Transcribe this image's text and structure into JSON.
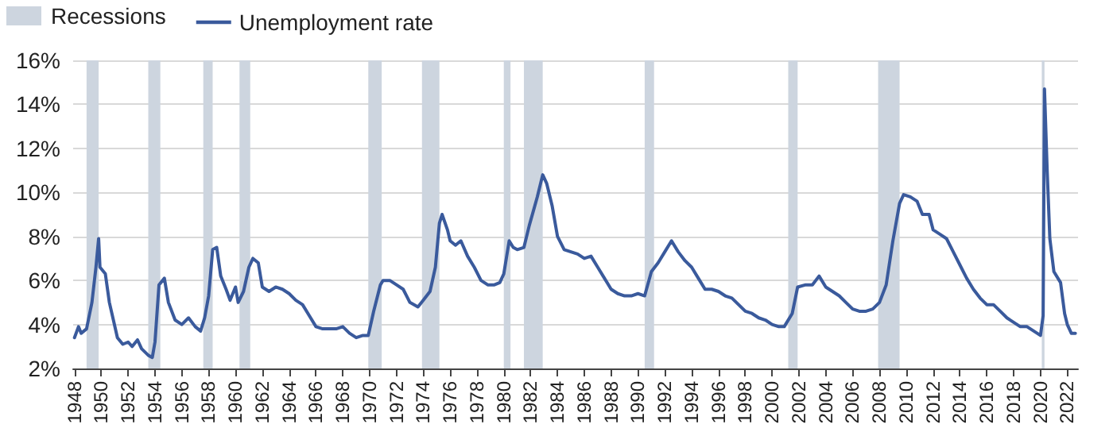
{
  "chart_data": {
    "type": "line",
    "legend": "top left",
    "grid": "y",
    "marker": "none",
    "line_style": "solid",
    "xlim": [
      1947.9,
      2022.8
    ],
    "xticks": [
      1948,
      1950,
      1952,
      1954,
      1956,
      1958,
      1960,
      1962,
      1964,
      1966,
      1968,
      1970,
      1972,
      1974,
      1976,
      1978,
      1980,
      1982,
      1984,
      1986,
      1988,
      1990,
      1992,
      1994,
      1996,
      1998,
      2000,
      2002,
      2004,
      2006,
      2008,
      2010,
      2012,
      2014,
      2016,
      2018,
      2020,
      2022
    ],
    "ylim": [
      2,
      16
    ],
    "yticks": [
      {
        "value": 2,
        "label": "2%"
      },
      {
        "value": 4,
        "label": "4%"
      },
      {
        "value": 6,
        "label": "6%"
      },
      {
        "value": 8,
        "label": "8%"
      },
      {
        "value": 10,
        "label": "10%"
      },
      {
        "value": 12,
        "label": "12%"
      },
      {
        "value": 14,
        "label": "14%"
      },
      {
        "value": 16,
        "label": "16%"
      }
    ],
    "bands": [
      {
        "axis": "x",
        "from": 1948.9,
        "to": 1949.8,
        "label": "Recessions",
        "color": "#cdd5df"
      },
      {
        "axis": "x",
        "from": 1953.5,
        "to": 1954.4,
        "color": "#cdd5df"
      },
      {
        "axis": "x",
        "from": 1957.6,
        "to": 1958.3,
        "color": "#cdd5df"
      },
      {
        "axis": "x",
        "from": 1960.3,
        "to": 1961.1,
        "color": "#cdd5df"
      },
      {
        "axis": "x",
        "from": 1969.9,
        "to": 1970.9,
        "color": "#cdd5df"
      },
      {
        "axis": "x",
        "from": 1973.9,
        "to": 1975.2,
        "color": "#cdd5df"
      },
      {
        "axis": "x",
        "from": 1980.0,
        "to": 1980.5,
        "color": "#cdd5df"
      },
      {
        "axis": "x",
        "from": 1981.5,
        "to": 1982.9,
        "color": "#cdd5df"
      },
      {
        "axis": "x",
        "from": 1990.5,
        "to": 1991.2,
        "color": "#cdd5df"
      },
      {
        "axis": "x",
        "from": 2001.2,
        "to": 2001.9,
        "color": "#cdd5df"
      },
      {
        "axis": "x",
        "from": 2007.9,
        "to": 2009.5,
        "color": "#cdd5df"
      },
      {
        "axis": "x",
        "from": 2020.1,
        "to": 2020.3,
        "color": "#cdd5df"
      }
    ],
    "x": [
      1948.0,
      1948.3,
      1948.5,
      1948.9,
      1949.3,
      1949.6,
      1949.8,
      1949.9,
      1950.3,
      1950.6,
      1950.9,
      1951.2,
      1951.6,
      1952.0,
      1952.3,
      1952.7,
      1953.0,
      1953.5,
      1953.8,
      1954.0,
      1954.3,
      1954.7,
      1955.0,
      1955.5,
      1956.0,
      1956.5,
      1957.0,
      1957.4,
      1957.7,
      1958.0,
      1958.3,
      1958.6,
      1958.9,
      1959.3,
      1959.6,
      1960.0,
      1960.2,
      1960.6,
      1961.0,
      1961.3,
      1961.7,
      1962.0,
      1962.5,
      1963.0,
      1963.5,
      1964.0,
      1964.5,
      1965.0,
      1965.5,
      1966.0,
      1966.5,
      1967.0,
      1967.5,
      1968.0,
      1968.5,
      1969.0,
      1969.5,
      1969.9,
      1970.3,
      1970.8,
      1971.0,
      1971.5,
      1972.0,
      1972.5,
      1973.0,
      1973.6,
      1974.0,
      1974.5,
      1974.9,
      1975.2,
      1975.4,
      1975.8,
      1976.0,
      1976.4,
      1976.8,
      1977.3,
      1977.8,
      1978.3,
      1978.8,
      1979.3,
      1979.7,
      1980.0,
      1980.4,
      1980.7,
      1981.0,
      1981.5,
      1981.9,
      1982.5,
      1982.9,
      1983.2,
      1983.6,
      1984.0,
      1984.5,
      1985.0,
      1985.5,
      1986.0,
      1986.5,
      1987.0,
      1987.5,
      1988.0,
      1988.5,
      1989.0,
      1989.5,
      1990.0,
      1990.5,
      1991.0,
      1991.5,
      1992.0,
      1992.5,
      1993.0,
      1993.5,
      1994.0,
      1994.5,
      1995.0,
      1995.5,
      1996.0,
      1996.5,
      1997.0,
      1997.5,
      1998.0,
      1998.5,
      1999.0,
      1999.5,
      2000.0,
      2000.5,
      2000.9,
      2001.5,
      2001.9,
      2002.5,
      2003.0,
      2003.5,
      2004.0,
      2004.5,
      2005.0,
      2005.5,
      2006.0,
      2006.5,
      2007.0,
      2007.5,
      2008.0,
      2008.5,
      2009.0,
      2009.5,
      2009.8,
      2010.3,
      2010.8,
      2011.2,
      2011.7,
      2012.0,
      2012.5,
      2013.0,
      2013.5,
      2014.0,
      2014.5,
      2015.0,
      2015.5,
      2016.0,
      2016.5,
      2017.0,
      2017.5,
      2018.0,
      2018.5,
      2019.0,
      2019.5,
      2020.0,
      2020.2,
      2020.3,
      2020.5,
      2020.7,
      2021.0,
      2021.5,
      2021.8,
      2022.0,
      2022.3,
      2022.6
    ],
    "series": [
      {
        "name": "Unemployment rate",
        "color": "#3a5a9c",
        "values": [
          3.4,
          3.9,
          3.6,
          3.8,
          5.0,
          6.6,
          7.9,
          6.6,
          6.3,
          5.0,
          4.2,
          3.4,
          3.1,
          3.2,
          3.0,
          3.3,
          2.9,
          2.6,
          2.5,
          3.2,
          5.8,
          6.1,
          5.0,
          4.2,
          4.0,
          4.3,
          3.9,
          3.7,
          4.3,
          5.3,
          7.4,
          7.5,
          6.2,
          5.6,
          5.1,
          5.7,
          5.0,
          5.5,
          6.6,
          7.0,
          6.8,
          5.7,
          5.5,
          5.7,
          5.6,
          5.4,
          5.1,
          4.9,
          4.4,
          3.9,
          3.8,
          3.8,
          3.8,
          3.9,
          3.6,
          3.4,
          3.5,
          3.5,
          4.6,
          5.8,
          6.0,
          6.0,
          5.8,
          5.6,
          5.0,
          4.8,
          5.1,
          5.5,
          6.6,
          8.6,
          9.0,
          8.3,
          7.8,
          7.6,
          7.8,
          7.1,
          6.6,
          6.0,
          5.8,
          5.8,
          5.9,
          6.3,
          7.8,
          7.5,
          7.4,
          7.5,
          8.5,
          9.8,
          10.8,
          10.4,
          9.4,
          8.0,
          7.4,
          7.3,
          7.2,
          7.0,
          7.1,
          6.6,
          6.1,
          5.6,
          5.4,
          5.3,
          5.3,
          5.4,
          5.3,
          6.4,
          6.8,
          7.3,
          7.8,
          7.3,
          6.9,
          6.6,
          6.1,
          5.6,
          5.6,
          5.5,
          5.3,
          5.2,
          4.9,
          4.6,
          4.5,
          4.3,
          4.2,
          4.0,
          3.9,
          3.9,
          4.5,
          5.7,
          5.8,
          5.8,
          6.2,
          5.7,
          5.5,
          5.3,
          5.0,
          4.7,
          4.6,
          4.6,
          4.7,
          5.0,
          5.8,
          7.8,
          9.5,
          9.9,
          9.8,
          9.6,
          9.0,
          9.0,
          8.3,
          8.1,
          7.9,
          7.3,
          6.7,
          6.1,
          5.6,
          5.2,
          4.9,
          4.9,
          4.6,
          4.3,
          4.1,
          3.9,
          3.9,
          3.7,
          3.5,
          4.4,
          14.7,
          11.0,
          7.9,
          6.4,
          5.9,
          4.5,
          4.0,
          3.6,
          3.6
        ]
      }
    ]
  }
}
